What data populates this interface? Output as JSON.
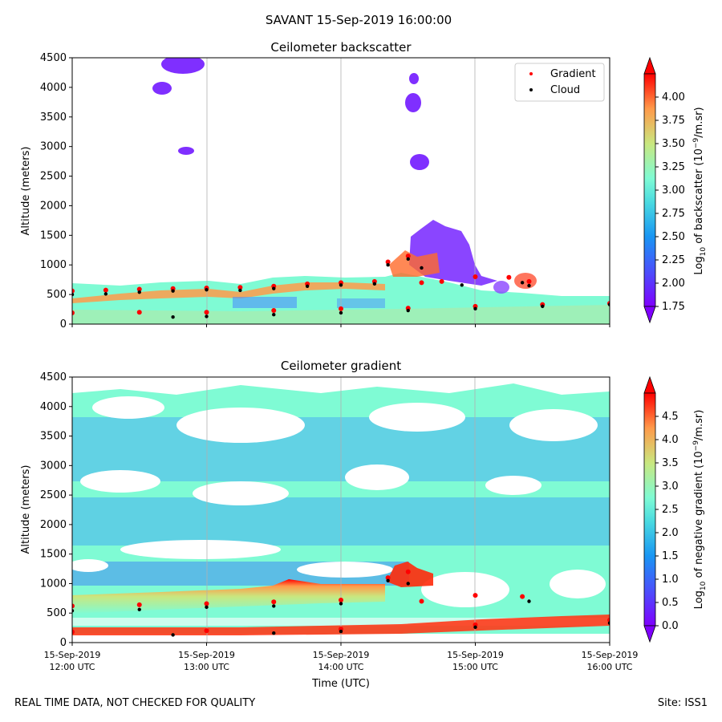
{
  "figure": {
    "suptitle": "SAVANT 15-Sep-2019 16:00:00",
    "footer_left": "REAL TIME DATA, NOT CHECKED FOR QUALITY",
    "footer_right": "Site: ISS1"
  },
  "chart_data": [
    {
      "type": "heatmap",
      "title": "Ceilometer backscatter",
      "xlabel": "",
      "ylabel": "Altitude (meters)",
      "x_range": [
        "2019-09-15T12:00:00Z",
        "2019-09-15T16:00:00Z"
      ],
      "ylim": [
        0,
        4500
      ],
      "y_ticks": [
        0,
        500,
        1000,
        1500,
        2000,
        2500,
        3000,
        3500,
        4000,
        4500
      ],
      "x_tick_labels": [],
      "grid": "vertical lines at each hour",
      "colormap": "rainbow",
      "colorbar": {
        "label": "Log10 of backscatter (10^-9/m.sr)",
        "label_main": "Log",
        "label_sub": "10",
        "label_mid": " of backscatter (10",
        "label_sup": "−9",
        "label_end": "/m.sr)",
        "range": [
          1.75,
          4.25
        ],
        "ticks": [
          "1.75",
          "2.00",
          "2.25",
          "2.50",
          "2.75",
          "3.00",
          "3.25",
          "3.50",
          "3.75",
          "4.00"
        ],
        "tick_values": [
          1.75,
          2.0,
          2.25,
          2.5,
          2.75,
          3.0,
          3.25,
          3.5,
          3.75,
          4.0
        ],
        "extend": "both"
      },
      "legend": {
        "placement": "top-right",
        "entries": [
          {
            "label": "Gradient",
            "color": "#ff0000"
          },
          {
            "label": "Cloud",
            "color": "#000000"
          }
        ]
      },
      "series": [
        {
          "name": "Gradient",
          "points": [
            [
              0.0,
              560
            ],
            [
              0.25,
              575
            ],
            [
              0.5,
              590
            ],
            [
              0.75,
              600
            ],
            [
              1.0,
              610
            ],
            [
              1.25,
              620
            ],
            [
              1.5,
              640
            ],
            [
              1.75,
              680
            ],
            [
              2.0,
              700
            ],
            [
              2.25,
              720
            ],
            [
              2.35,
              1050
            ],
            [
              2.5,
              1150
            ],
            [
              2.6,
              700
            ],
            [
              2.75,
              720
            ],
            [
              3.0,
              800
            ],
            [
              3.25,
              790
            ],
            [
              3.4,
              720
            ],
            [
              0.0,
              190
            ],
            [
              0.5,
              200
            ],
            [
              1.0,
              200
            ],
            [
              1.5,
              230
            ],
            [
              2.0,
              260
            ],
            [
              2.5,
              270
            ],
            [
              3.0,
              300
            ],
            [
              3.5,
              330
            ],
            [
              4.0,
              350
            ]
          ]
        },
        {
          "name": "Cloud",
          "points": [
            [
              0.0,
              500
            ],
            [
              0.25,
              510
            ],
            [
              0.5,
              540
            ],
            [
              0.75,
              560
            ],
            [
              1.0,
              580
            ],
            [
              1.25,
              570
            ],
            [
              1.5,
              600
            ],
            [
              1.75,
              640
            ],
            [
              2.0,
              660
            ],
            [
              2.25,
              680
            ],
            [
              2.35,
              1000
            ],
            [
              2.5,
              1100
            ],
            [
              2.6,
              950
            ],
            [
              2.9,
              660
            ],
            [
              3.35,
              700
            ],
            [
              3.4,
              650
            ],
            [
              0.75,
              120
            ],
            [
              1.0,
              130
            ],
            [
              1.5,
              160
            ],
            [
              2.0,
              190
            ],
            [
              2.5,
              230
            ],
            [
              3.0,
              260
            ],
            [
              3.5,
              300
            ],
            [
              4.0,
              330
            ]
          ]
        }
      ]
    },
    {
      "type": "heatmap",
      "title": "Ceilometer gradient",
      "xlabel": "Time (UTC)",
      "ylabel": "Altitude (meters)",
      "x_range": [
        "2019-09-15T12:00:00Z",
        "2019-09-15T16:00:00Z"
      ],
      "ylim": [
        0,
        4500
      ],
      "y_ticks": [
        0,
        500,
        1000,
        1500,
        2000,
        2500,
        3000,
        3500,
        4000,
        4500
      ],
      "x_tick_labels": [
        {
          "date": "15-Sep-2019",
          "time": "12:00 UTC",
          "hour": 0
        },
        {
          "date": "15-Sep-2019",
          "time": "13:00 UTC",
          "hour": 1
        },
        {
          "date": "15-Sep-2019",
          "time": "14:00 UTC",
          "hour": 2
        },
        {
          "date": "15-Sep-2019",
          "time": "15:00 UTC",
          "hour": 3
        },
        {
          "date": "15-Sep-2019",
          "time": "16:00 UTC",
          "hour": 4
        }
      ],
      "grid": "vertical lines at each hour",
      "colormap": "rainbow",
      "colorbar": {
        "label": "Log10 of negative gradient (10^-9/m.sr)",
        "label_main": "Log",
        "label_sub": "10",
        "label_mid": " of negative gradient (10",
        "label_sup": "−9",
        "label_end": "/m.sr)",
        "range": [
          0.0,
          5.0
        ],
        "ticks": [
          "0.0",
          "0.5",
          "1.0",
          "1.5",
          "2.0",
          "2.5",
          "3.0",
          "3.5",
          "4.0",
          "4.5"
        ],
        "tick_values": [
          0.0,
          0.5,
          1.0,
          1.5,
          2.0,
          2.5,
          3.0,
          3.5,
          4.0,
          4.5
        ],
        "extend": "both"
      },
      "series": [
        {
          "name": "Gradient",
          "points": [
            [
              0.0,
              620
            ],
            [
              0.5,
              640
            ],
            [
              1.0,
              660
            ],
            [
              1.5,
              690
            ],
            [
              2.0,
              720
            ],
            [
              2.35,
              1100
            ],
            [
              2.5,
              1200
            ],
            [
              2.6,
              700
            ],
            [
              3.0,
              800
            ],
            [
              3.35,
              780
            ],
            [
              0.0,
              180
            ],
            [
              1.0,
              200
            ],
            [
              2.0,
              230
            ],
            [
              3.0,
              300
            ],
            [
              4.0,
              380
            ]
          ]
        },
        {
          "name": "Cloud",
          "points": [
            [
              0.0,
              540
            ],
            [
              0.5,
              560
            ],
            [
              1.0,
              600
            ],
            [
              1.5,
              620
            ],
            [
              2.0,
              660
            ],
            [
              2.35,
              1050
            ],
            [
              2.5,
              1000
            ],
            [
              3.4,
              700
            ],
            [
              0.75,
              130
            ],
            [
              1.5,
              160
            ],
            [
              2.0,
              190
            ],
            [
              3.0,
              260
            ],
            [
              4.0,
              330
            ]
          ]
        }
      ]
    }
  ]
}
